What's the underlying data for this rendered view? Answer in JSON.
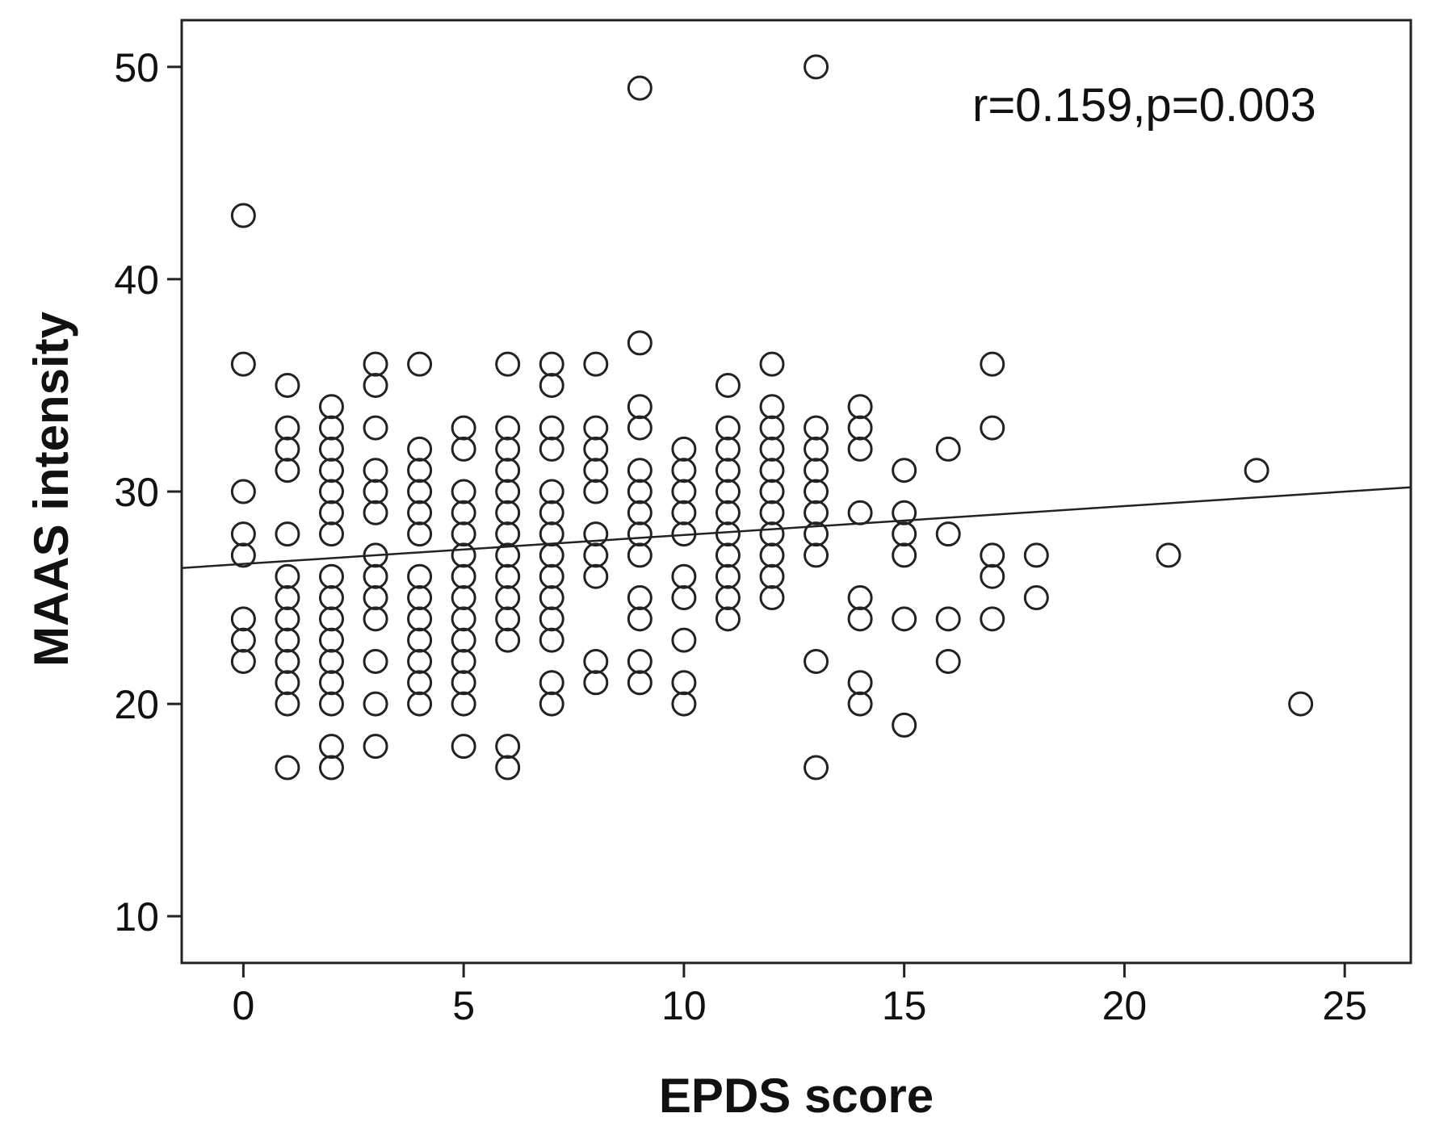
{
  "chart_data": {
    "type": "scatter",
    "xlabel": "EPDS score",
    "ylabel": "MAAS intensity",
    "annotation": "r=0.159,p=0.003",
    "xlim": [
      -1.4,
      26.5
    ],
    "ylim": [
      7.8,
      52.2
    ],
    "x_ticks": [
      0,
      5,
      10,
      15,
      20,
      25
    ],
    "y_ticks": [
      10,
      20,
      30,
      40,
      50
    ],
    "grid": false,
    "legend": "none",
    "marker": "open-circle",
    "colors": {
      "marker": "#222222",
      "line": "#222222",
      "axis": "#222222",
      "background": "#ffffff"
    },
    "fit_line": {
      "x": [
        -1.4,
        26.5
      ],
      "y": [
        26.4,
        30.2
      ]
    },
    "points": [
      [
        0,
        43
      ],
      [
        0,
        36
      ],
      [
        0,
        30
      ],
      [
        0,
        28
      ],
      [
        0,
        27
      ],
      [
        0,
        24
      ],
      [
        0,
        23
      ],
      [
        0,
        22
      ],
      [
        1,
        35
      ],
      [
        1,
        33
      ],
      [
        1,
        32
      ],
      [
        1,
        31
      ],
      [
        1,
        28
      ],
      [
        1,
        26
      ],
      [
        1,
        25
      ],
      [
        1,
        24
      ],
      [
        1,
        23
      ],
      [
        1,
        22
      ],
      [
        1,
        21
      ],
      [
        1,
        20
      ],
      [
        1,
        17
      ],
      [
        2,
        34
      ],
      [
        2,
        33
      ],
      [
        2,
        32
      ],
      [
        2,
        31
      ],
      [
        2,
        30
      ],
      [
        2,
        29
      ],
      [
        2,
        28
      ],
      [
        2,
        26
      ],
      [
        2,
        25
      ],
      [
        2,
        24
      ],
      [
        2,
        23
      ],
      [
        2,
        22
      ],
      [
        2,
        21
      ],
      [
        2,
        20
      ],
      [
        2,
        18
      ],
      [
        2,
        17
      ],
      [
        3,
        36
      ],
      [
        3,
        35
      ],
      [
        3,
        33
      ],
      [
        3,
        31
      ],
      [
        3,
        30
      ],
      [
        3,
        29
      ],
      [
        3,
        27
      ],
      [
        3,
        26
      ],
      [
        3,
        25
      ],
      [
        3,
        24
      ],
      [
        3,
        22
      ],
      [
        3,
        20
      ],
      [
        3,
        18
      ],
      [
        4,
        36
      ],
      [
        4,
        32
      ],
      [
        4,
        31
      ],
      [
        4,
        30
      ],
      [
        4,
        29
      ],
      [
        4,
        28
      ],
      [
        4,
        26
      ],
      [
        4,
        25
      ],
      [
        4,
        24
      ],
      [
        4,
        23
      ],
      [
        4,
        22
      ],
      [
        4,
        21
      ],
      [
        4,
        20
      ],
      [
        5,
        33
      ],
      [
        5,
        32
      ],
      [
        5,
        30
      ],
      [
        5,
        29
      ],
      [
        5,
        28
      ],
      [
        5,
        27
      ],
      [
        5,
        26
      ],
      [
        5,
        25
      ],
      [
        5,
        24
      ],
      [
        5,
        23
      ],
      [
        5,
        22
      ],
      [
        5,
        21
      ],
      [
        5,
        20
      ],
      [
        5,
        18
      ],
      [
        6,
        36
      ],
      [
        6,
        33
      ],
      [
        6,
        32
      ],
      [
        6,
        31
      ],
      [
        6,
        30
      ],
      [
        6,
        29
      ],
      [
        6,
        28
      ],
      [
        6,
        27
      ],
      [
        6,
        26
      ],
      [
        6,
        25
      ],
      [
        6,
        24
      ],
      [
        6,
        23
      ],
      [
        6,
        18
      ],
      [
        6,
        17
      ],
      [
        7,
        36
      ],
      [
        7,
        35
      ],
      [
        7,
        33
      ],
      [
        7,
        32
      ],
      [
        7,
        30
      ],
      [
        7,
        29
      ],
      [
        7,
        28
      ],
      [
        7,
        27
      ],
      [
        7,
        26
      ],
      [
        7,
        25
      ],
      [
        7,
        24
      ],
      [
        7,
        23
      ],
      [
        7,
        21
      ],
      [
        7,
        20
      ],
      [
        8,
        36
      ],
      [
        8,
        33
      ],
      [
        8,
        32
      ],
      [
        8,
        31
      ],
      [
        8,
        30
      ],
      [
        8,
        28
      ],
      [
        8,
        27
      ],
      [
        8,
        26
      ],
      [
        8,
        22
      ],
      [
        8,
        21
      ],
      [
        9,
        49
      ],
      [
        9,
        37
      ],
      [
        9,
        34
      ],
      [
        9,
        33
      ],
      [
        9,
        31
      ],
      [
        9,
        30
      ],
      [
        9,
        29
      ],
      [
        9,
        28
      ],
      [
        9,
        27
      ],
      [
        9,
        25
      ],
      [
        9,
        24
      ],
      [
        9,
        22
      ],
      [
        9,
        21
      ],
      [
        10,
        32
      ],
      [
        10,
        31
      ],
      [
        10,
        30
      ],
      [
        10,
        29
      ],
      [
        10,
        28
      ],
      [
        10,
        26
      ],
      [
        10,
        25
      ],
      [
        10,
        23
      ],
      [
        10,
        21
      ],
      [
        10,
        20
      ],
      [
        11,
        35
      ],
      [
        11,
        33
      ],
      [
        11,
        32
      ],
      [
        11,
        31
      ],
      [
        11,
        30
      ],
      [
        11,
        29
      ],
      [
        11,
        28
      ],
      [
        11,
        27
      ],
      [
        11,
        26
      ],
      [
        11,
        25
      ],
      [
        11,
        24
      ],
      [
        12,
        36
      ],
      [
        12,
        34
      ],
      [
        12,
        33
      ],
      [
        12,
        32
      ],
      [
        12,
        31
      ],
      [
        12,
        30
      ],
      [
        12,
        29
      ],
      [
        12,
        28
      ],
      [
        12,
        27
      ],
      [
        12,
        26
      ],
      [
        12,
        25
      ],
      [
        13,
        50
      ],
      [
        13,
        33
      ],
      [
        13,
        32
      ],
      [
        13,
        31
      ],
      [
        13,
        30
      ],
      [
        13,
        29
      ],
      [
        13,
        28
      ],
      [
        13,
        27
      ],
      [
        13,
        22
      ],
      [
        13,
        17
      ],
      [
        14,
        34
      ],
      [
        14,
        33
      ],
      [
        14,
        32
      ],
      [
        14,
        29
      ],
      [
        14,
        25
      ],
      [
        14,
        24
      ],
      [
        14,
        21
      ],
      [
        14,
        20
      ],
      [
        15,
        31
      ],
      [
        15,
        29
      ],
      [
        15,
        28
      ],
      [
        15,
        27
      ],
      [
        15,
        24
      ],
      [
        15,
        19
      ],
      [
        16,
        32
      ],
      [
        16,
        28
      ],
      [
        16,
        24
      ],
      [
        16,
        22
      ],
      [
        17,
        36
      ],
      [
        17,
        33
      ],
      [
        17,
        27
      ],
      [
        17,
        26
      ],
      [
        17,
        24
      ],
      [
        18,
        27
      ],
      [
        18,
        25
      ],
      [
        21,
        27
      ],
      [
        23,
        31
      ],
      [
        24,
        20
      ]
    ]
  }
}
